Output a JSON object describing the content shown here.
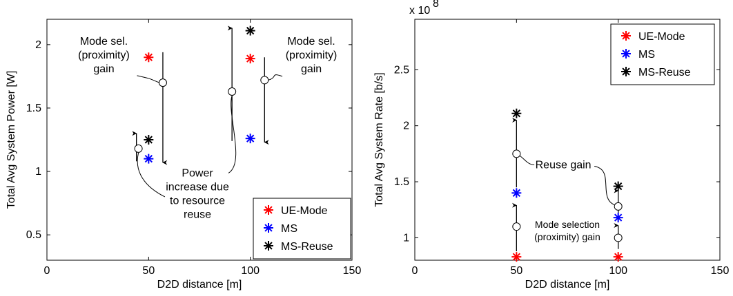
{
  "chart_data": [
    {
      "type": "scatter",
      "xlabel": "D2D distance [m]",
      "ylabel": "Total Avg System Power [W]",
      "xlim": [
        0,
        150
      ],
      "ylim": [
        0.3,
        2.2
      ],
      "xticks": [
        0,
        50,
        100,
        150
      ],
      "yticks": [
        0.5,
        1,
        1.5,
        2
      ],
      "xtick_labels": [
        "0",
        "50",
        "100",
        "150"
      ],
      "ytick_labels": [
        "0.5",
        "1",
        "1.5",
        "2"
      ],
      "grid": false,
      "legend_position": "bottom-right",
      "legend": [
        "UE-Mode",
        "MS",
        "MS-Reuse"
      ],
      "series": [
        {
          "name": "UE-Mode",
          "color": "#ff0000",
          "x": [
            50,
            100
          ],
          "y": [
            1.9,
            1.89
          ]
        },
        {
          "name": "MS",
          "color": "#0000ff",
          "x": [
            50,
            100
          ],
          "y": [
            1.1,
            1.26
          ]
        },
        {
          "name": "MS-Reuse",
          "color": "#000000",
          "x": [
            50,
            100
          ],
          "y": [
            1.25,
            2.11
          ]
        }
      ],
      "arrows": [
        {
          "x": 57,
          "y_from": 1.94,
          "y_to": 1.07
        },
        {
          "x": 44,
          "y_from": 1.08,
          "y_to": 1.3
        },
        {
          "x": 91,
          "y_from": 1.24,
          "y_to": 2.13
        },
        {
          "x": 107,
          "y_from": 1.9,
          "y_to": 1.23
        }
      ],
      "markers": [
        {
          "x": 57,
          "y": 1.7
        },
        {
          "x": 45,
          "y": 1.18
        },
        {
          "x": 91,
          "y": 1.63
        },
        {
          "x": 107,
          "y": 1.72
        }
      ],
      "annotations": [
        {
          "lines": [
            "Mode sel.",
            "(proximity)",
            "gain"
          ],
          "x": 28,
          "y": 2.0,
          "target": [
            57,
            1.7
          ],
          "anchor_y": 1.76
        },
        {
          "lines": [
            "Mode sel.",
            "(proximity)",
            "gain"
          ],
          "x": 130,
          "y": 2.0,
          "target": [
            107,
            1.72
          ],
          "anchor_y": 1.74
        },
        {
          "lines": [
            "Power",
            "increase due",
            "to resource",
            "reuse"
          ],
          "x": 74,
          "y": 0.96,
          "target": [
            91,
            1.63
          ],
          "anchor_y": 0.97
        },
        {
          "lines": [],
          "target": [
            45,
            1.18
          ],
          "curve_end": [
            58,
            0.8
          ]
        }
      ],
      "y_exponent_label": ""
    },
    {
      "type": "scatter",
      "xlabel": "D2D distance [m]",
      "ylabel": "Total Avg System Rate [b/s]",
      "xlim": [
        0,
        150
      ],
      "ylim": [
        0.8,
        2.95
      ],
      "xticks": [
        0,
        50,
        100,
        150
      ],
      "yticks": [
        1,
        1.5,
        2,
        2.5
      ],
      "xtick_labels": [
        "0",
        "50",
        "100",
        "150"
      ],
      "ytick_labels": [
        "1",
        "1.5",
        "2",
        "2.5"
      ],
      "grid": false,
      "legend_position": "top-right",
      "legend": [
        "UE-Mode",
        "MS",
        "MS-Reuse"
      ],
      "series": [
        {
          "name": "UE-Mode",
          "color": "#ff0000",
          "x": [
            50,
            100
          ],
          "y": [
            0.83,
            0.83
          ]
        },
        {
          "name": "MS",
          "color": "#0000ff",
          "x": [
            50,
            100
          ],
          "y": [
            1.4,
            1.18
          ]
        },
        {
          "name": "MS-Reuse",
          "color": "#000000",
          "x": [
            50,
            100
          ],
          "y": [
            2.11,
            1.46
          ]
        }
      ],
      "arrows": [
        {
          "x": 50,
          "y_from": 1.45,
          "y_to": 2.05
        },
        {
          "x": 50,
          "y_from": 0.88,
          "y_to": 1.29
        },
        {
          "x": 100,
          "y_from": 1.22,
          "y_to": 1.42
        },
        {
          "x": 100,
          "y_from": 0.9,
          "y_to": 1.11
        }
      ],
      "markers": [
        {
          "x": 50,
          "y": 1.75
        },
        {
          "x": 50,
          "y": 1.1
        },
        {
          "x": 100,
          "y": 1.28
        },
        {
          "x": 100,
          "y": 1.0
        }
      ],
      "annotations": [
        {
          "lines": [
            "Reuse gain"
          ],
          "x": 73,
          "y": 1.62,
          "target": [
            50,
            1.75
          ]
        },
        {
          "lines": [
            "Mode selection",
            "(proximity) gain"
          ],
          "x": 75,
          "y": 1.09,
          "target": [
            50,
            1.1
          ]
        }
      ],
      "y_exponent_label": "x 10",
      "y_exponent_power": "8"
    }
  ]
}
